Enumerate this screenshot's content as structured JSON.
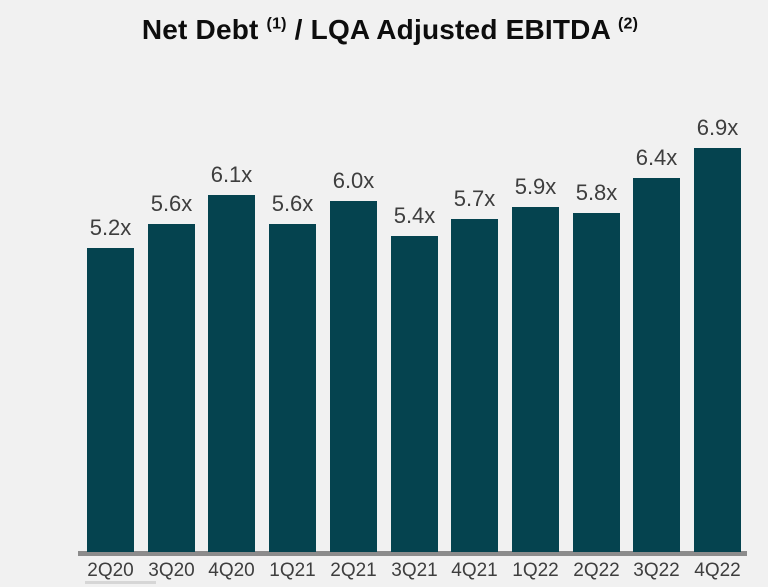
{
  "title": {
    "part1": "Net Debt",
    "sup1": "(1)",
    "part2": " / LQA Adjusted EBITDA",
    "sup2": "(2)"
  },
  "chart_data": {
    "type": "bar",
    "title": "Net Debt (1) / LQA Adjusted EBITDA (2)",
    "categories": [
      "2Q20",
      "3Q20",
      "4Q20",
      "1Q21",
      "2Q21",
      "3Q21",
      "4Q21",
      "1Q22",
      "2Q22",
      "3Q22",
      "4Q22"
    ],
    "values": [
      5.2,
      5.6,
      6.1,
      5.6,
      6.0,
      5.4,
      5.7,
      5.9,
      5.8,
      6.4,
      6.9
    ],
    "value_labels": [
      "5.2x",
      "5.6x",
      "6.1x",
      "5.6x",
      "6.0x",
      "5.4x",
      "5.7x",
      "5.9x",
      "5.8x",
      "6.4x",
      "6.9x"
    ],
    "xlabel": "",
    "ylabel": "",
    "ylim": [
      0,
      7.5
    ],
    "grid": false,
    "legend": false,
    "bar_color": "#05434F",
    "label_color": "#3E3E3E",
    "axis_line_color": "#8C8C8C",
    "background_color": "#F1F1F1"
  }
}
